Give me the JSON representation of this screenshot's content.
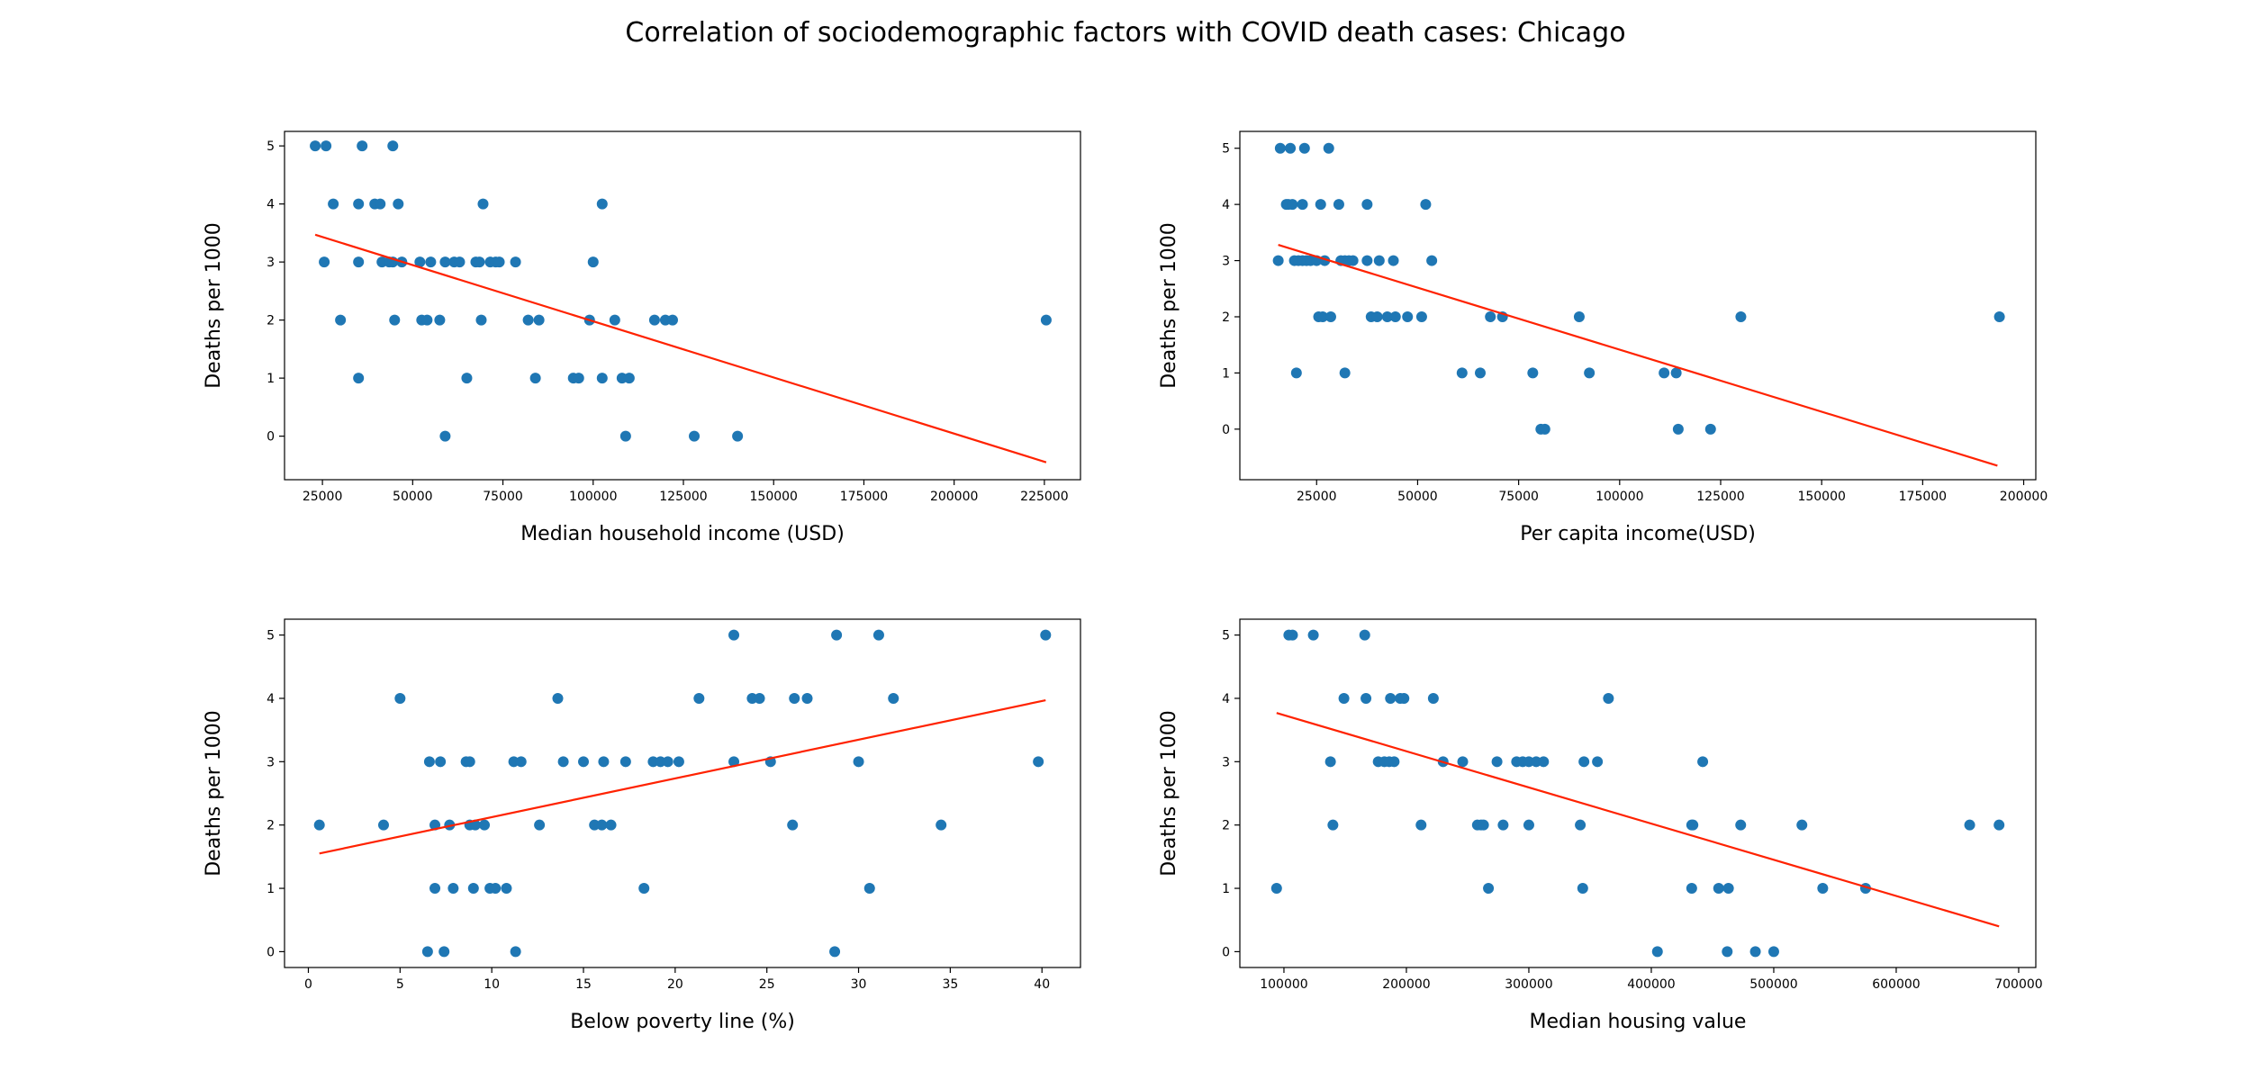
{
  "figure": {
    "title": "Correlation of sociodemographic factors with COVID death cases: Chicago"
  },
  "colors": {
    "points": "#1f77b4",
    "fit_line": "#ff2200"
  },
  "chart_data": [
    {
      "type": "scatter",
      "xlabel": "Median household income (USD)",
      "ylabel": "Deaths per 1000",
      "xlim": [
        14500,
        235000
      ],
      "ylim": [
        -0.75,
        5.25
      ],
      "xticks": [
        25000,
        50000,
        75000,
        100000,
        125000,
        150000,
        175000,
        200000,
        225000
      ],
      "yticks": [
        0,
        1,
        2,
        3,
        4,
        5
      ],
      "fit_line": {
        "x": [
          23000,
          225500
        ],
        "y": [
          3.47,
          -0.45
        ]
      },
      "points": [
        [
          23000,
          5
        ],
        [
          26000,
          5
        ],
        [
          36000,
          5
        ],
        [
          44500,
          5
        ],
        [
          28000,
          4
        ],
        [
          35000,
          4
        ],
        [
          39500,
          4
        ],
        [
          41000,
          4
        ],
        [
          46000,
          4
        ],
        [
          69500,
          4
        ],
        [
          102500,
          4
        ],
        [
          25500,
          3
        ],
        [
          35000,
          3
        ],
        [
          41500,
          3
        ],
        [
          43500,
          3
        ],
        [
          44500,
          3
        ],
        [
          47000,
          3
        ],
        [
          52000,
          3
        ],
        [
          55000,
          3
        ],
        [
          59000,
          3
        ],
        [
          61500,
          3
        ],
        [
          63000,
          3
        ],
        [
          67500,
          3
        ],
        [
          68500,
          3
        ],
        [
          71500,
          3
        ],
        [
          73000,
          3
        ],
        [
          74000,
          3
        ],
        [
          78500,
          3
        ],
        [
          100000,
          3
        ],
        [
          30000,
          2
        ],
        [
          45000,
          2
        ],
        [
          52500,
          2
        ],
        [
          54000,
          2
        ],
        [
          57500,
          2
        ],
        [
          69000,
          2
        ],
        [
          82000,
          2
        ],
        [
          85000,
          2
        ],
        [
          99000,
          2
        ],
        [
          106000,
          2
        ],
        [
          117000,
          2
        ],
        [
          120000,
          2
        ],
        [
          122000,
          2
        ],
        [
          225500,
          2
        ],
        [
          35000,
          1
        ],
        [
          65000,
          1
        ],
        [
          84000,
          1
        ],
        [
          94500,
          1
        ],
        [
          96000,
          1
        ],
        [
          102500,
          1
        ],
        [
          108000,
          1
        ],
        [
          110000,
          1
        ],
        [
          59000,
          0
        ],
        [
          109000,
          0
        ],
        [
          128000,
          0
        ],
        [
          140000,
          0
        ]
      ]
    },
    {
      "type": "scatter",
      "xlabel": "Per capita income(USD)",
      "ylabel": "Deaths per 1000",
      "xlim": [
        6000,
        203000
      ],
      "ylim": [
        -0.9,
        5.3
      ],
      "xticks": [
        25000,
        50000,
        75000,
        100000,
        125000,
        150000,
        175000,
        200000
      ],
      "yticks": [
        0,
        1,
        2,
        3,
        4,
        5
      ],
      "fit_line": {
        "x": [
          15500,
          193500
        ],
        "y": [
          3.28,
          -0.65
        ]
      },
      "points": [
        [
          16000,
          5
        ],
        [
          18500,
          5
        ],
        [
          22000,
          5
        ],
        [
          28000,
          5
        ],
        [
          17500,
          4
        ],
        [
          18000,
          4
        ],
        [
          19000,
          4
        ],
        [
          21500,
          4
        ],
        [
          26000,
          4
        ],
        [
          30500,
          4
        ],
        [
          37500,
          4
        ],
        [
          52000,
          4
        ],
        [
          15500,
          3
        ],
        [
          19500,
          3
        ],
        [
          20500,
          3
        ],
        [
          21500,
          3
        ],
        [
          22500,
          3
        ],
        [
          23500,
          3
        ],
        [
          25000,
          3
        ],
        [
          27000,
          3
        ],
        [
          31000,
          3
        ],
        [
          32000,
          3
        ],
        [
          33000,
          3
        ],
        [
          34000,
          3
        ],
        [
          37500,
          3
        ],
        [
          40500,
          3
        ],
        [
          44000,
          3
        ],
        [
          53500,
          3
        ],
        [
          25500,
          2
        ],
        [
          26500,
          2
        ],
        [
          28500,
          2
        ],
        [
          38500,
          2
        ],
        [
          40000,
          2
        ],
        [
          42500,
          2
        ],
        [
          44500,
          2
        ],
        [
          47500,
          2
        ],
        [
          51000,
          2
        ],
        [
          68000,
          2
        ],
        [
          71000,
          2
        ],
        [
          90000,
          2
        ],
        [
          130000,
          2
        ],
        [
          194000,
          2
        ],
        [
          20000,
          1
        ],
        [
          32000,
          1
        ],
        [
          61000,
          1
        ],
        [
          65500,
          1
        ],
        [
          78500,
          1
        ],
        [
          92500,
          1
        ],
        [
          111000,
          1
        ],
        [
          114000,
          1
        ],
        [
          80500,
          0
        ],
        [
          81500,
          0
        ],
        [
          114500,
          0
        ],
        [
          122500,
          0
        ]
      ]
    },
    {
      "type": "scatter",
      "xlabel": "Below poverty line (%)",
      "ylabel": "Deaths per 1000",
      "xlim": [
        -1.3,
        42.1
      ],
      "ylim": [
        -0.25,
        5.25
      ],
      "xticks": [
        0,
        5,
        10,
        15,
        20,
        25,
        30,
        35,
        40
      ],
      "yticks": [
        0,
        1,
        2,
        3,
        4,
        5
      ],
      "fit_line": {
        "x": [
          0.6,
          40.2
        ],
        "y": [
          1.55,
          3.97
        ]
      },
      "points": [
        [
          23.2,
          5
        ],
        [
          28.8,
          5
        ],
        [
          31.1,
          5
        ],
        [
          40.2,
          5
        ],
        [
          5.0,
          4
        ],
        [
          13.6,
          4
        ],
        [
          21.3,
          4
        ],
        [
          24.2,
          4
        ],
        [
          24.6,
          4
        ],
        [
          26.5,
          4
        ],
        [
          27.2,
          4
        ],
        [
          31.9,
          4
        ],
        [
          6.6,
          3
        ],
        [
          7.2,
          3
        ],
        [
          8.6,
          3
        ],
        [
          8.8,
          3
        ],
        [
          11.2,
          3
        ],
        [
          11.6,
          3
        ],
        [
          13.9,
          3
        ],
        [
          15.0,
          3
        ],
        [
          16.1,
          3
        ],
        [
          17.3,
          3
        ],
        [
          18.8,
          3
        ],
        [
          19.2,
          3
        ],
        [
          19.6,
          3
        ],
        [
          20.2,
          3
        ],
        [
          23.2,
          3
        ],
        [
          25.2,
          3
        ],
        [
          30.0,
          3
        ],
        [
          39.8,
          3
        ],
        [
          0.6,
          2
        ],
        [
          4.1,
          2
        ],
        [
          6.9,
          2
        ],
        [
          7.7,
          2
        ],
        [
          8.8,
          2
        ],
        [
          9.1,
          2
        ],
        [
          9.6,
          2
        ],
        [
          12.6,
          2
        ],
        [
          15.6,
          2
        ],
        [
          16.0,
          2
        ],
        [
          16.5,
          2
        ],
        [
          26.4,
          2
        ],
        [
          34.5,
          2
        ],
        [
          6.9,
          1
        ],
        [
          7.9,
          1
        ],
        [
          9.0,
          1
        ],
        [
          9.9,
          1
        ],
        [
          10.2,
          1
        ],
        [
          10.8,
          1
        ],
        [
          18.3,
          1
        ],
        [
          30.6,
          1
        ],
        [
          6.5,
          0
        ],
        [
          7.4,
          0
        ],
        [
          11.3,
          0
        ],
        [
          28.7,
          0
        ]
      ]
    },
    {
      "type": "scatter",
      "xlabel": "Median housing value",
      "ylabel": "Deaths per 1000",
      "xlim": [
        64000,
        714000
      ],
      "ylim": [
        -0.25,
        5.25
      ],
      "xticks": [
        100000,
        200000,
        300000,
        400000,
        500000,
        600000,
        700000
      ],
      "yticks": [
        0,
        1,
        2,
        3,
        4,
        5
      ],
      "fit_line": {
        "x": [
          94000,
          684000
        ],
        "y": [
          3.77,
          0.4
        ]
      },
      "points": [
        [
          104000,
          5
        ],
        [
          107000,
          5
        ],
        [
          124000,
          5
        ],
        [
          166000,
          5
        ],
        [
          149000,
          4
        ],
        [
          167000,
          4
        ],
        [
          187000,
          4
        ],
        [
          195000,
          4
        ],
        [
          198000,
          4
        ],
        [
          222000,
          4
        ],
        [
          365000,
          4
        ],
        [
          138000,
          3
        ],
        [
          177000,
          3
        ],
        [
          182000,
          3
        ],
        [
          186000,
          3
        ],
        [
          190000,
          3
        ],
        [
          230000,
          3
        ],
        [
          246000,
          3
        ],
        [
          274000,
          3
        ],
        [
          290000,
          3
        ],
        [
          295000,
          3
        ],
        [
          300000,
          3
        ],
        [
          306000,
          3
        ],
        [
          312000,
          3
        ],
        [
          345000,
          3
        ],
        [
          356000,
          3
        ],
        [
          442000,
          3
        ],
        [
          140000,
          2
        ],
        [
          212000,
          2
        ],
        [
          258000,
          2
        ],
        [
          261000,
          2
        ],
        [
          263000,
          2
        ],
        [
          279000,
          2
        ],
        [
          300000,
          2
        ],
        [
          342000,
          2
        ],
        [
          433000,
          2
        ],
        [
          434000,
          2
        ],
        [
          473000,
          2
        ],
        [
          523000,
          2
        ],
        [
          660000,
          2
        ],
        [
          684000,
          2
        ],
        [
          94000,
          1
        ],
        [
          267000,
          1
        ],
        [
          344000,
          1
        ],
        [
          433000,
          1
        ],
        [
          455000,
          1
        ],
        [
          463000,
          1
        ],
        [
          540000,
          1
        ],
        [
          575000,
          1
        ],
        [
          405000,
          0
        ],
        [
          462000,
          0
        ],
        [
          485000,
          0
        ],
        [
          500000,
          0
        ]
      ]
    }
  ]
}
